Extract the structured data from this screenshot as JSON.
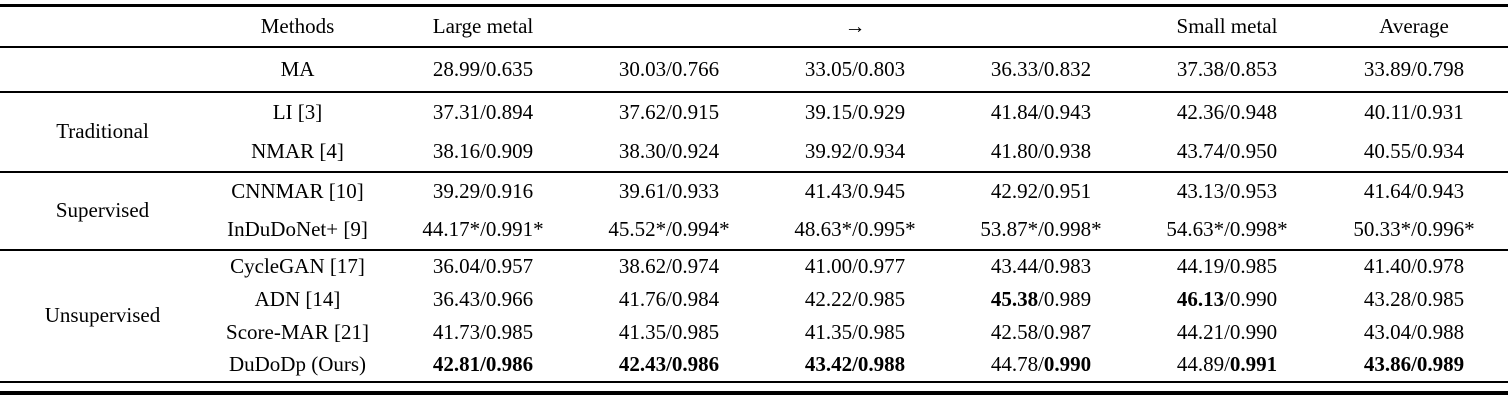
{
  "table": {
    "header": {
      "methods": "Methods",
      "large_metal": "Large metal",
      "arrow": "→",
      "small_metal": "Small metal",
      "average": "Average"
    },
    "groups": [
      {
        "label": "",
        "rows": [
          {
            "method": "MA",
            "cells": [
              [
                {
                  "t": "28.99/0.635",
                  "b": false
                }
              ],
              [
                {
                  "t": "30.03/0.766",
                  "b": false
                }
              ],
              [
                {
                  "t": "33.05/0.803",
                  "b": false
                }
              ],
              [
                {
                  "t": "36.33/0.832",
                  "b": false
                }
              ],
              [
                {
                  "t": "37.38/0.853",
                  "b": false
                }
              ],
              [
                {
                  "t": "33.89/0.798",
                  "b": false
                }
              ]
            ]
          }
        ]
      },
      {
        "label": "Traditional",
        "rows": [
          {
            "method": "LI [3]",
            "cells": [
              [
                {
                  "t": "37.31/0.894",
                  "b": false
                }
              ],
              [
                {
                  "t": "37.62/0.915",
                  "b": false
                }
              ],
              [
                {
                  "t": "39.15/0.929",
                  "b": false
                }
              ],
              [
                {
                  "t": "41.84/0.943",
                  "b": false
                }
              ],
              [
                {
                  "t": "42.36/0.948",
                  "b": false
                }
              ],
              [
                {
                  "t": "40.11/0.931",
                  "b": false
                }
              ]
            ]
          },
          {
            "method": "NMAR [4]",
            "cells": [
              [
                {
                  "t": "38.16/0.909",
                  "b": false
                }
              ],
              [
                {
                  "t": "38.30/0.924",
                  "b": false
                }
              ],
              [
                {
                  "t": "39.92/0.934",
                  "b": false
                }
              ],
              [
                {
                  "t": "41.80/0.938",
                  "b": false
                }
              ],
              [
                {
                  "t": "43.74/0.950",
                  "b": false
                }
              ],
              [
                {
                  "t": "40.55/0.934",
                  "b": false
                }
              ]
            ]
          }
        ]
      },
      {
        "label": "Supervised",
        "rows": [
          {
            "method": "CNNMAR [10]",
            "cells": [
              [
                {
                  "t": "39.29/0.916",
                  "b": false
                }
              ],
              [
                {
                  "t": "39.61/0.933",
                  "b": false
                }
              ],
              [
                {
                  "t": "41.43/0.945",
                  "b": false
                }
              ],
              [
                {
                  "t": "42.92/0.951",
                  "b": false
                }
              ],
              [
                {
                  "t": "43.13/0.953",
                  "b": false
                }
              ],
              [
                {
                  "t": "41.64/0.943",
                  "b": false
                }
              ]
            ]
          },
          {
            "method": "InDuDoNet+ [9]",
            "cells": [
              [
                {
                  "t": "44.17*/0.991*",
                  "b": false
                }
              ],
              [
                {
                  "t": "45.52*/0.994*",
                  "b": false
                }
              ],
              [
                {
                  "t": "48.63*/0.995*",
                  "b": false
                }
              ],
              [
                {
                  "t": "53.87*/0.998*",
                  "b": false
                }
              ],
              [
                {
                  "t": "54.63*/0.998*",
                  "b": false
                }
              ],
              [
                {
                  "t": "50.33*/0.996*",
                  "b": false
                }
              ]
            ]
          }
        ]
      },
      {
        "label": "Unsupervised",
        "rows": [
          {
            "method": "CycleGAN [17]",
            "cells": [
              [
                {
                  "t": "36.04/0.957",
                  "b": false
                }
              ],
              [
                {
                  "t": "38.62/0.974",
                  "b": false
                }
              ],
              [
                {
                  "t": "41.00/0.977",
                  "b": false
                }
              ],
              [
                {
                  "t": "43.44/0.983",
                  "b": false
                }
              ],
              [
                {
                  "t": "44.19/0.985",
                  "b": false
                }
              ],
              [
                {
                  "t": "41.40/0.978",
                  "b": false
                }
              ]
            ]
          },
          {
            "method": "ADN [14]",
            "cells": [
              [
                {
                  "t": "36.43/0.966",
                  "b": false
                }
              ],
              [
                {
                  "t": "41.76/0.984",
                  "b": false
                }
              ],
              [
                {
                  "t": "42.22/0.985",
                  "b": false
                }
              ],
              [
                {
                  "t": "45.38",
                  "b": true
                },
                {
                  "t": "/0.989",
                  "b": false
                }
              ],
              [
                {
                  "t": "46.13",
                  "b": true
                },
                {
                  "t": "/0.990",
                  "b": false
                }
              ],
              [
                {
                  "t": "43.28/0.985",
                  "b": false
                }
              ]
            ]
          },
          {
            "method": "Score-MAR [21]",
            "cells": [
              [
                {
                  "t": "41.73/0.985",
                  "b": false
                }
              ],
              [
                {
                  "t": "41.35/0.985",
                  "b": false
                }
              ],
              [
                {
                  "t": "41.35/0.985",
                  "b": false
                }
              ],
              [
                {
                  "t": "42.58/0.987",
                  "b": false
                }
              ],
              [
                {
                  "t": "44.21/0.990",
                  "b": false
                }
              ],
              [
                {
                  "t": "43.04/0.988",
                  "b": false
                }
              ]
            ]
          },
          {
            "method": "DuDoDp (Ours)",
            "cells": [
              [
                {
                  "t": "42.81/0.986",
                  "b": true
                }
              ],
              [
                {
                  "t": "42.43/0.986",
                  "b": true
                }
              ],
              [
                {
                  "t": "43.42/0.988",
                  "b": true
                }
              ],
              [
                {
                  "t": "44.78/",
                  "b": false
                },
                {
                  "t": "0.990",
                  "b": true
                }
              ],
              [
                {
                  "t": "44.89/",
                  "b": false
                },
                {
                  "t": "0.991",
                  "b": true
                }
              ],
              [
                {
                  "t": "43.86/0.989",
                  "b": true
                }
              ]
            ]
          }
        ]
      }
    ]
  }
}
